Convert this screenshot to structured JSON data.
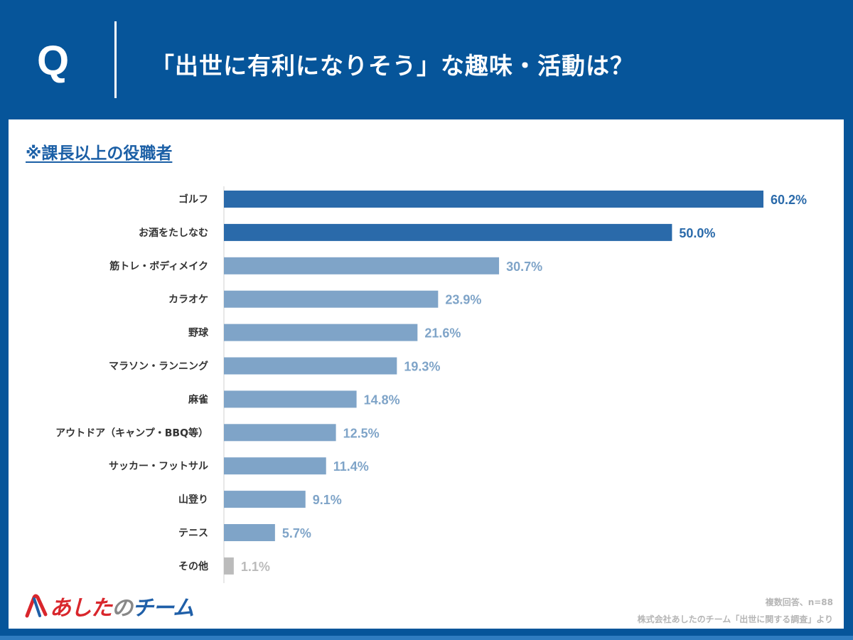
{
  "header": {
    "q_mark": "Q",
    "title": "「出世に有利になりそう」な趣味・活動は？"
  },
  "subtitle": "※課長以上の役職者",
  "colors": {
    "header_bg": "#06559a",
    "bar_top": "#2a6aaa",
    "bar_light": "#7fa4c8",
    "bar_other": "#bbbbbb"
  },
  "chart_data": {
    "type": "bar",
    "orientation": "horizontal",
    "categories": [
      "ゴルフ",
      "お酒をたしなむ",
      "筋トレ・ボディメイク",
      "カラオケ",
      "野球",
      "マラソン・ランニング",
      "麻雀",
      "アウトドア（キャンプ・BBQ等）",
      "サッカー・フットサル",
      "山登り",
      "テニス",
      "その他"
    ],
    "values": [
      60.2,
      50.0,
      30.7,
      23.9,
      21.6,
      19.3,
      14.8,
      12.5,
      11.4,
      9.1,
      5.7,
      1.1
    ],
    "data_labels": [
      "60.2%",
      "50.0%",
      "30.7%",
      "23.9%",
      "21.6%",
      "19.3%",
      "14.8%",
      "12.5%",
      "11.4%",
      "9.1%",
      "5.7%",
      "1.1%"
    ],
    "unit": "%",
    "xlim": [
      0,
      60.2
    ],
    "grid": false,
    "legend": "none"
  },
  "footer": {
    "logo": "あしたのチーム",
    "note1": "複数回答、n=88",
    "note2": "株式会社あしたのチーム「出世に関する調査」より"
  }
}
